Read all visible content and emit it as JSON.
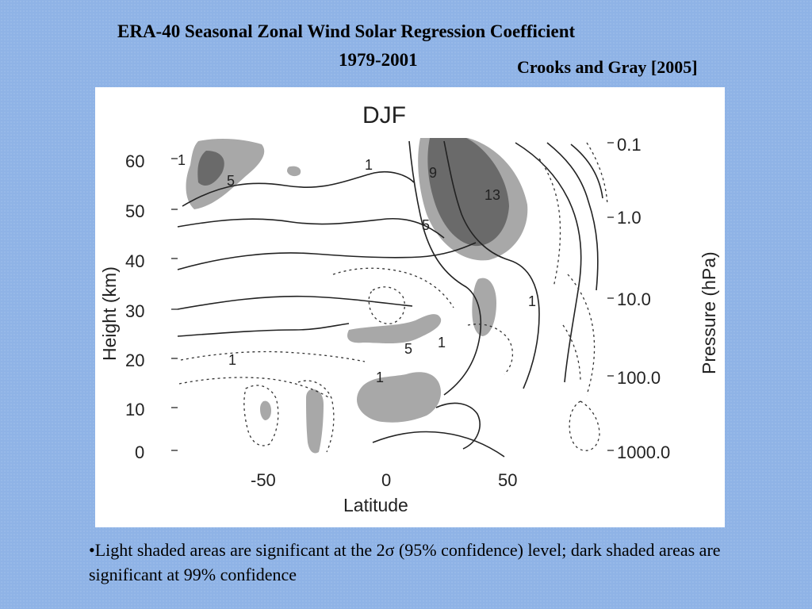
{
  "slide": {
    "title_line1": "ERA-40 Seasonal Zonal Wind Solar Regression Coefficient",
    "title_line2": "1979-2001",
    "credit": "Crooks and Gray [2005]",
    "note": "•Light shaded areas are significant at the 2σ (95% confidence) level; dark shaded areas are significant at 99% confidence"
  },
  "figure": {
    "panel_label": "DJF",
    "x_axis_label": "Latitude",
    "y_axis_left_label": "Height (km)",
    "y_axis_right_label": "Pressure (hPa)",
    "x_ticks": [
      "-50",
      "0",
      "50"
    ],
    "y_left_ticks": [
      "0",
      "10",
      "20",
      "30",
      "40",
      "50",
      "60"
    ],
    "y_right_ticks": [
      "0.1",
      "1.0",
      "10.0",
      "100.0",
      "1000.0"
    ],
    "contour_labels": [
      "5",
      "1",
      "9",
      "13",
      "5",
      "1",
      "5",
      "1",
      "1",
      "1",
      "1"
    ],
    "colors": {
      "light_shade": "#a8a8a8",
      "dark_shade": "#6a6a6a",
      "background": "#8fb3e6"
    }
  }
}
